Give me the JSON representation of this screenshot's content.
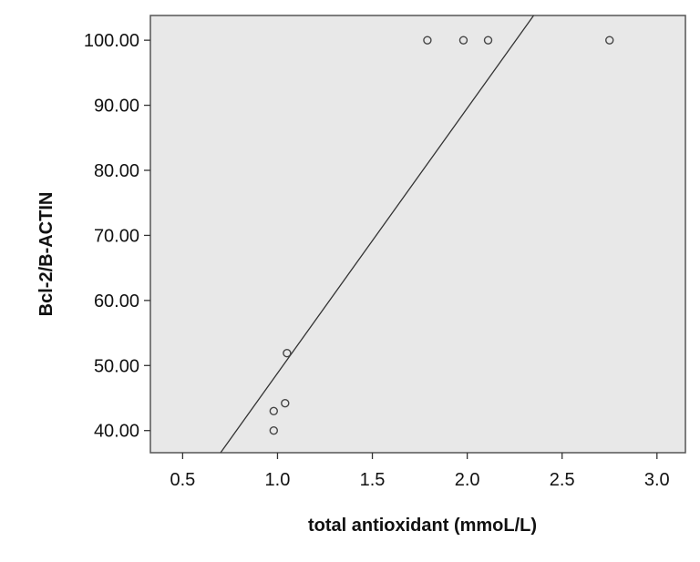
{
  "chart_data": {
    "type": "scatter",
    "title": "",
    "xlabel": "total antioxidant (mmoL/L)",
    "ylabel": "Bcl-2/B-ACTIN",
    "xlim": [
      0.33,
      3.15
    ],
    "ylim": [
      36.6,
      103.8
    ],
    "x_ticks": [
      0.5,
      1.0,
      1.5,
      2.0,
      2.5,
      3.0
    ],
    "x_tick_labels": [
      "0.5",
      "1.0",
      "1.5",
      "2.0",
      "2.5",
      "3.0"
    ],
    "y_ticks": [
      40,
      50,
      60,
      70,
      80,
      90,
      100
    ],
    "y_tick_labels": [
      "40.00",
      "50.00",
      "60.00",
      "70.00",
      "80.00",
      "90.00",
      "100.00"
    ],
    "grid": false,
    "plot_background": "#e8e8e8",
    "marker_style": "open-circle",
    "points": [
      {
        "x": 0.98,
        "y": 40.0
      },
      {
        "x": 0.98,
        "y": 43.0
      },
      {
        "x": 1.04,
        "y": 44.2
      },
      {
        "x": 1.05,
        "y": 51.9
      },
      {
        "x": 1.79,
        "y": 100.0
      },
      {
        "x": 1.98,
        "y": 100.0
      },
      {
        "x": 2.11,
        "y": 100.0
      },
      {
        "x": 2.75,
        "y": 100.0
      }
    ],
    "fit_line": {
      "x1": 0.7,
      "y1": 36.6,
      "x2": 2.35,
      "y2": 103.8
    }
  }
}
